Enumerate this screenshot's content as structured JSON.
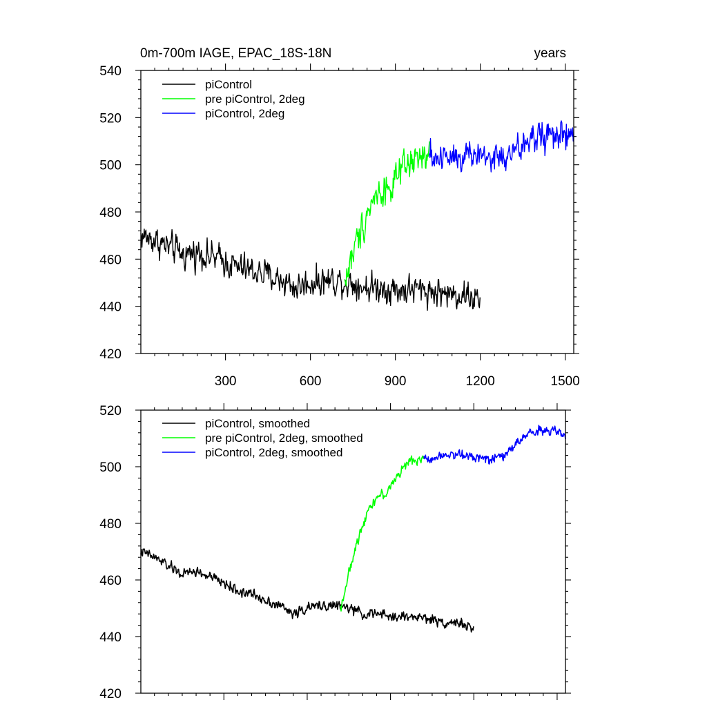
{
  "chart_data": [
    {
      "type": "line",
      "title_left": "0m-700m IAGE, EPAC_18S-18N",
      "title_right": "years",
      "xlabel": "",
      "ylabel": "",
      "xlim": [
        1,
        1530
      ],
      "ylim": [
        420,
        540
      ],
      "xticks": [
        300,
        600,
        900,
        1200,
        1500
      ],
      "xtick_labels": [
        "300",
        "600",
        "900",
        "1200",
        "1500"
      ],
      "yticks": [
        420,
        440,
        460,
        480,
        500,
        520,
        540
      ],
      "ytick_labels": [
        "420",
        "440",
        "460",
        "480",
        "500",
        "520",
        "540"
      ],
      "legend_position": "top-left",
      "series": [
        {
          "name": "piControl",
          "color": "#000000",
          "noise": 4.5,
          "x": [
            1,
            50,
            100,
            150,
            200,
            250,
            300,
            350,
            400,
            450,
            500,
            550,
            600,
            650,
            700,
            750,
            800,
            850,
            900,
            950,
            1000,
            1050,
            1100,
            1150,
            1200
          ],
          "values": [
            470,
            468,
            465,
            462,
            463,
            461,
            459,
            456,
            455,
            453,
            451,
            448,
            450,
            451,
            451,
            450,
            448,
            448,
            447,
            447,
            447,
            446,
            445,
            445,
            442
          ]
        },
        {
          "name": "pre piControl, 2deg",
          "color": "#00ff00",
          "noise": 5,
          "x": [
            720,
            740,
            760,
            780,
            800,
            820,
            840,
            860,
            880,
            900,
            920,
            940,
            960,
            980,
            1000,
            1020
          ],
          "values": [
            450,
            458,
            466,
            473,
            480,
            485,
            488,
            490,
            490,
            493,
            496,
            499,
            501,
            502,
            503,
            503
          ]
        },
        {
          "name": "piControl, 2deg",
          "color": "#0000ff",
          "noise": 5,
          "x": [
            1020,
            1060,
            1100,
            1150,
            1200,
            1250,
            1300,
            1350,
            1400,
            1450,
            1500,
            1530
          ],
          "values": [
            503,
            503,
            505,
            504,
            504,
            503,
            503,
            508,
            512,
            513,
            512,
            511
          ]
        }
      ]
    },
    {
      "type": "line",
      "xlabel": "",
      "ylabel": "",
      "xlim": [
        1,
        1530
      ],
      "ylim": [
        420,
        520
      ],
      "xticks": [
        300,
        600,
        900,
        1200,
        1500
      ],
      "yticks": [
        420,
        440,
        460,
        480,
        500,
        520
      ],
      "ytick_labels": [
        "420",
        "440",
        "460",
        "480",
        "500",
        "520"
      ],
      "legend_position": "top-left",
      "series": [
        {
          "name": "piControl, smoothed",
          "color": "#000000",
          "noise": 1.3,
          "x": [
            1,
            50,
            100,
            150,
            200,
            250,
            300,
            350,
            400,
            450,
            500,
            550,
            600,
            650,
            700,
            750,
            800,
            850,
            900,
            950,
            1000,
            1050,
            1100,
            1150,
            1200
          ],
          "values": [
            470,
            468,
            465,
            462,
            463,
            461,
            459,
            456,
            455,
            453,
            451,
            448,
            450,
            451,
            451,
            450,
            448,
            448,
            447,
            447,
            447,
            446,
            445,
            445,
            442
          ]
        },
        {
          "name": "pre piControl, 2deg, smoothed",
          "color": "#00ff00",
          "noise": 1.2,
          "x": [
            720,
            740,
            760,
            780,
            800,
            820,
            840,
            860,
            880,
            900,
            920,
            940,
            960,
            980,
            1000,
            1020
          ],
          "values": [
            450,
            458,
            466,
            473,
            480,
            485,
            488,
            490,
            490,
            493,
            496,
            499,
            501,
            502,
            503,
            503
          ]
        },
        {
          "name": "piControl, 2deg, smoothed",
          "color": "#0000ff",
          "noise": 1.2,
          "x": [
            1020,
            1060,
            1100,
            1150,
            1200,
            1250,
            1300,
            1350,
            1400,
            1450,
            1500,
            1530
          ],
          "values": [
            503,
            503,
            505,
            504,
            504,
            503,
            503,
            508,
            512,
            513,
            512,
            511
          ]
        }
      ]
    }
  ]
}
